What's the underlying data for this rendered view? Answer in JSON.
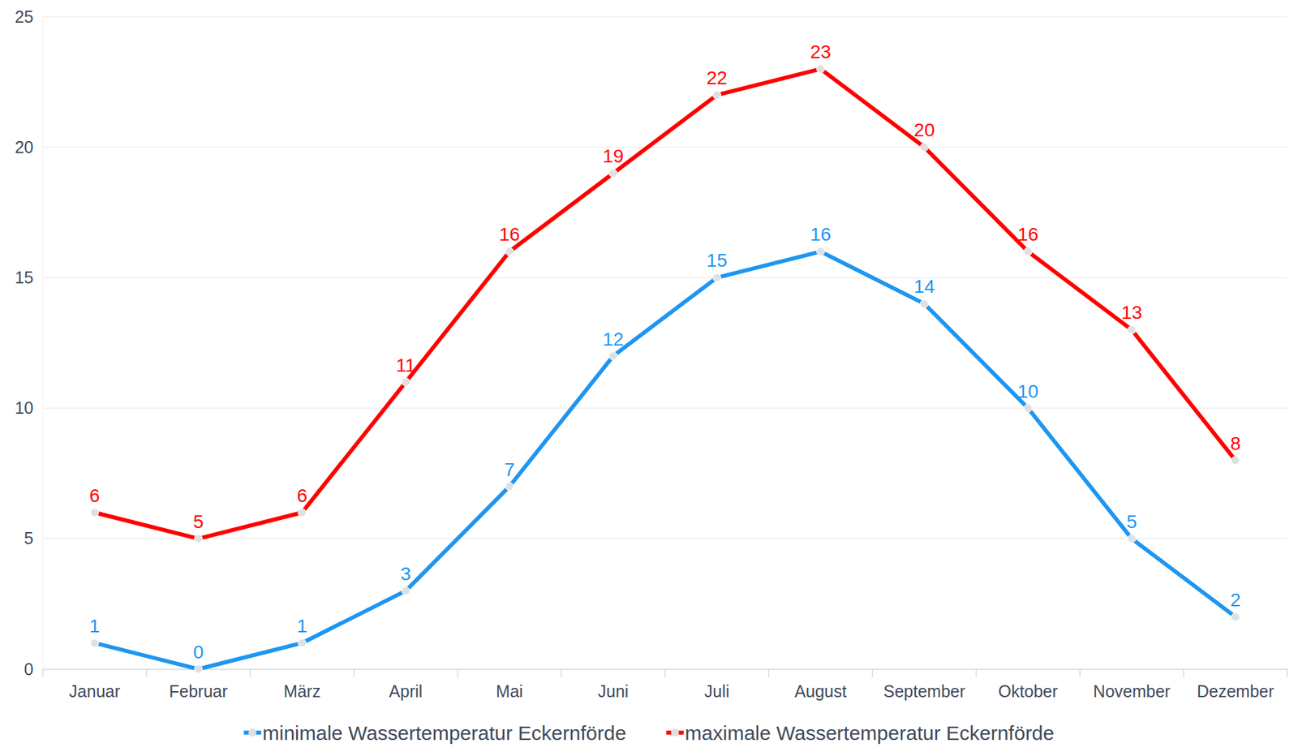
{
  "chart_data": {
    "type": "line",
    "categories": [
      "Januar",
      "Februar",
      "März",
      "April",
      "Mai",
      "Juni",
      "Juli",
      "August",
      "September",
      "Oktober",
      "November",
      "Dezember"
    ],
    "series": [
      {
        "name": "minimale Wassertemperatur Eckernförde",
        "color": "#1e96f0",
        "marker": "circle",
        "values": [
          1,
          0,
          1,
          3,
          7,
          12,
          15,
          16,
          14,
          10,
          5,
          2
        ]
      },
      {
        "name": "maximale Wassertemperatur Eckernförde",
        "color": "#ff0000",
        "marker": "circle",
        "values": [
          6,
          5,
          6,
          11,
          16,
          19,
          22,
          23,
          20,
          16,
          13,
          8
        ]
      }
    ],
    "ylim": [
      0,
      25
    ],
    "yticks": [
      0,
      5,
      10,
      15,
      20,
      25
    ],
    "grid": true,
    "data_labels": true,
    "legend": "bottom"
  }
}
